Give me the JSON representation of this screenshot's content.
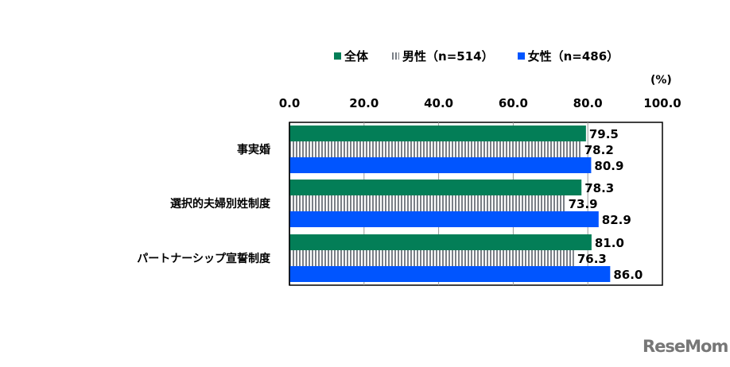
{
  "chart_data": {
    "type": "bar",
    "orientation": "horizontal",
    "unit_label": "(%)",
    "categories": [
      "事実婚",
      "選択的夫婦別姓制度",
      "パートナーシップ宣誓制度"
    ],
    "series": [
      {
        "name": "全体",
        "color": "#037e57",
        "pattern": "solid",
        "values": [
          79.5,
          78.3,
          81.0
        ]
      },
      {
        "name": "男性（n=514）",
        "color": "#7a7f86",
        "pattern": "vertical-stripes",
        "values": [
          78.2,
          73.9,
          76.3
        ]
      },
      {
        "name": "女性（n=486）",
        "color": "#0055ff",
        "pattern": "solid",
        "values": [
          80.9,
          82.9,
          86.0
        ]
      }
    ],
    "xlim": [
      0,
      100
    ],
    "ticks": [
      "0.0",
      "20.0",
      "40.0",
      "60.0",
      "80.0",
      "100.0"
    ],
    "tick_values": [
      0,
      20,
      40,
      60,
      80,
      100
    ],
    "axis_position": "top",
    "grid": true,
    "legend_position": "top"
  },
  "watermark": "ReseMom"
}
